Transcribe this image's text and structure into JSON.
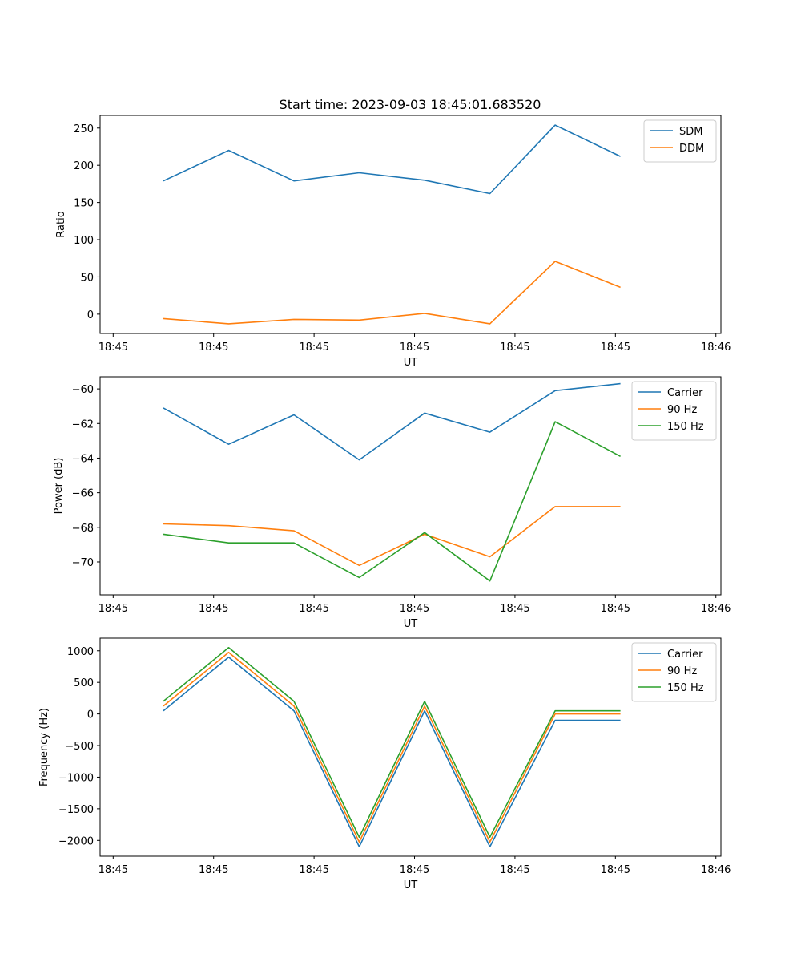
{
  "figure_title": "Start time: 2023-09-03 18:45:01.683520",
  "chart_data": [
    {
      "type": "line",
      "title": "Start time: 2023-09-03 18:45:01.683520",
      "xlabel": "UT",
      "ylabel": "Ratio",
      "x_ticks": [
        "18:45",
        "18:45",
        "18:45",
        "18:45",
        "18:45",
        "18:45",
        "18:46"
      ],
      "xlim": [
        -0.13,
        6.05
      ],
      "x": [
        0.5,
        1.15,
        1.8,
        2.45,
        3.1,
        3.75,
        4.4,
        5.05
      ],
      "ylim": [
        -26,
        267
      ],
      "yticks": [
        0,
        50,
        100,
        150,
        200,
        250
      ],
      "grid": false,
      "legend_position": "top-right",
      "series": [
        {
          "name": "SDM",
          "color": "#1f77b4",
          "values": [
            179,
            220,
            179,
            190,
            180,
            162,
            254,
            212
          ]
        },
        {
          "name": "DDM",
          "color": "#ff7f0e",
          "values": [
            -6,
            -13,
            -7,
            -8,
            1,
            -13,
            71,
            36
          ]
        }
      ]
    },
    {
      "type": "line",
      "title": "",
      "xlabel": "UT",
      "ylabel": "Power (dB)",
      "x_ticks": [
        "18:45",
        "18:45",
        "18:45",
        "18:45",
        "18:45",
        "18:45",
        "18:46"
      ],
      "xlim": [
        -0.13,
        6.05
      ],
      "x": [
        0.5,
        1.15,
        1.8,
        2.45,
        3.1,
        3.75,
        4.4,
        5.05
      ],
      "ylim": [
        -71.9,
        -59.3
      ],
      "yticks": [
        -70,
        -68,
        -66,
        -64,
        -62,
        -60
      ],
      "grid": false,
      "legend_position": "top-right",
      "series": [
        {
          "name": "Carrier",
          "color": "#1f77b4",
          "values": [
            -61.1,
            -63.2,
            -61.5,
            -64.1,
            -61.4,
            -62.5,
            -60.1,
            -59.7
          ]
        },
        {
          "name": "90 Hz",
          "color": "#ff7f0e",
          "values": [
            -67.8,
            -67.9,
            -68.2,
            -70.2,
            -68.4,
            -69.7,
            -66.8,
            -66.8
          ]
        },
        {
          "name": "150 Hz",
          "color": "#2ca02c",
          "values": [
            -68.4,
            -68.9,
            -68.9,
            -70.9,
            -68.3,
            -71.1,
            -61.9,
            -63.9
          ]
        }
      ]
    },
    {
      "type": "line",
      "title": "",
      "xlabel": "UT",
      "ylabel": "Frequency (Hz)",
      "x_ticks": [
        "18:45",
        "18:45",
        "18:45",
        "18:45",
        "18:45",
        "18:45",
        "18:46"
      ],
      "xlim": [
        -0.13,
        6.05
      ],
      "x": [
        0.5,
        1.15,
        1.8,
        2.45,
        3.1,
        3.75,
        4.4,
        5.05
      ],
      "ylim": [
        -2250,
        1200
      ],
      "yticks": [
        -2000,
        -1500,
        -1000,
        -500,
        0,
        500,
        1000
      ],
      "grid": false,
      "legend_position": "top-right",
      "series": [
        {
          "name": "Carrier",
          "color": "#1f77b4",
          "values": [
            50,
            900,
            50,
            -2100,
            50,
            -2100,
            -100,
            -100
          ]
        },
        {
          "name": "90 Hz",
          "color": "#ff7f0e",
          "values": [
            125,
            975,
            125,
            -2025,
            125,
            -2025,
            0,
            0
          ]
        },
        {
          "name": "150 Hz",
          "color": "#2ca02c",
          "values": [
            200,
            1050,
            200,
            -1950,
            200,
            -1950,
            50,
            50
          ]
        }
      ]
    }
  ]
}
